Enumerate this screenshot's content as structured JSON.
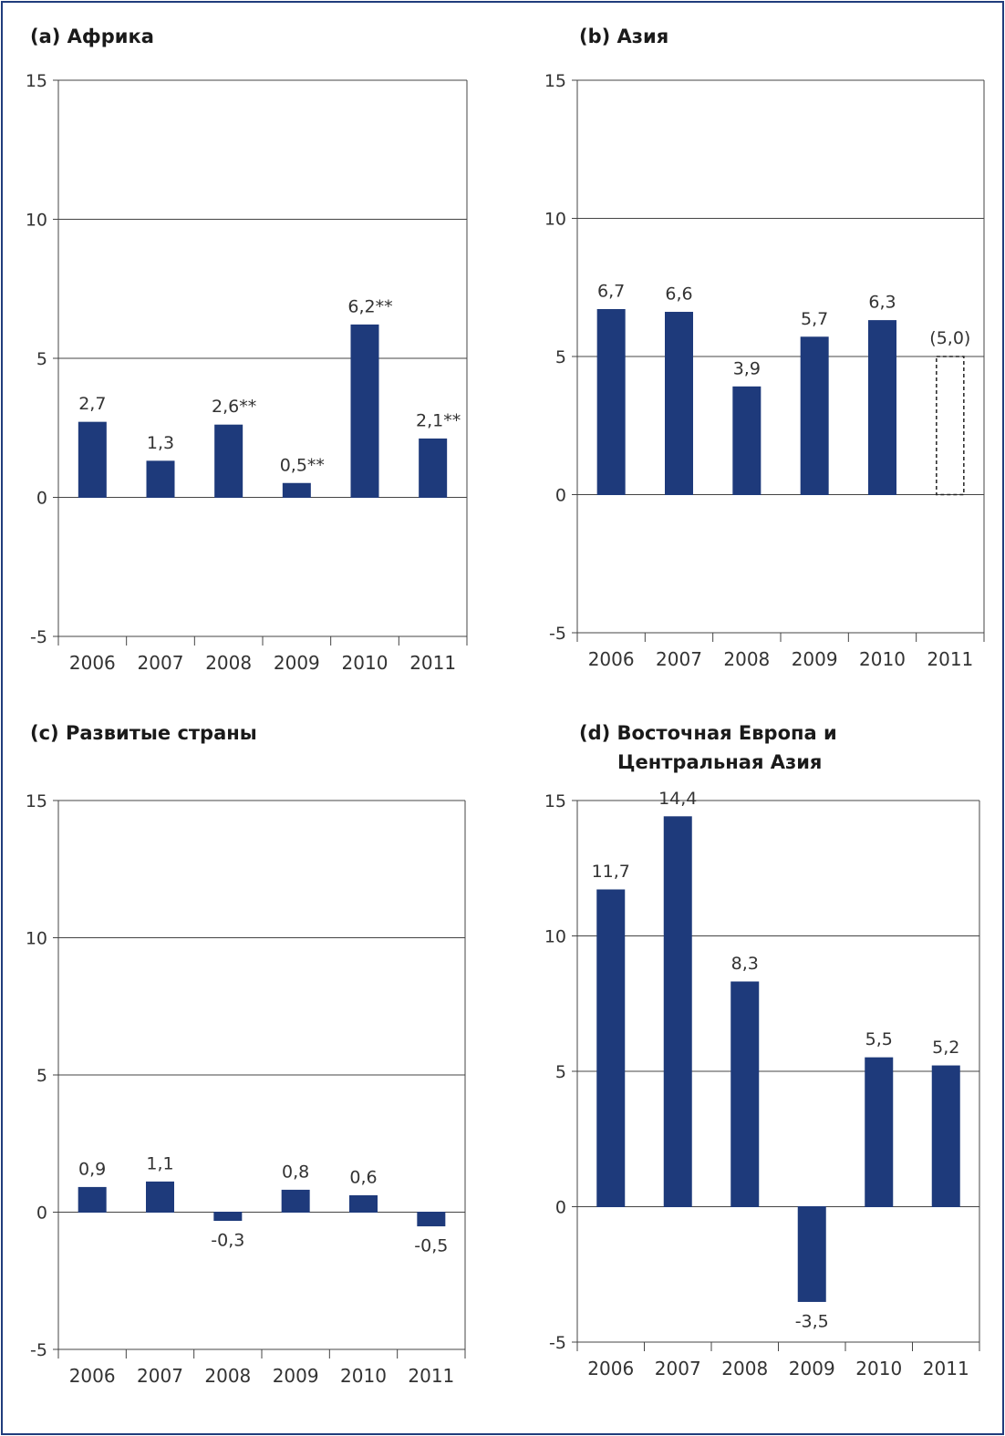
{
  "panels": {
    "a": {
      "title": "(a) Африка"
    },
    "b": {
      "title": "(b) Азия"
    },
    "c": {
      "title": "(c) Развитые страны"
    },
    "d": {
      "title_line1": "(d) Восточная Европа и",
      "title_line2": "Центральная Азия"
    }
  },
  "colors": {
    "bar": "#1e3a7b",
    "frame": "#203c7c",
    "grid": "#444444"
  },
  "chart_data": [
    {
      "id": "a",
      "type": "bar",
      "title": "(a) Африка",
      "categories": [
        "2006",
        "2007",
        "2008",
        "2009",
        "2010",
        "2011"
      ],
      "values": [
        2.7,
        1.3,
        2.6,
        0.5,
        6.2,
        2.1
      ],
      "data_labels": [
        "2,7",
        "1,3",
        "2,6**",
        "0,5**",
        "6,2**",
        "2,1**"
      ],
      "ylim": [
        -5,
        15
      ],
      "yticks": [
        -5,
        0,
        5,
        10,
        15
      ],
      "ytick_labels": [
        "-5",
        "0",
        "5",
        "10",
        "15"
      ],
      "grid": true,
      "projected_last": false
    },
    {
      "id": "b",
      "type": "bar",
      "title": "(b) Азия",
      "categories": [
        "2006",
        "2007",
        "2008",
        "2009",
        "2010",
        "2011"
      ],
      "values": [
        6.7,
        6.6,
        3.9,
        5.7,
        6.3,
        5.0
      ],
      "data_labels": [
        "6,7",
        "6,6",
        "3,9",
        "5,7",
        "6,3",
        "(5,0)"
      ],
      "ylim": [
        -5,
        15
      ],
      "yticks": [
        -5,
        0,
        5,
        10,
        15
      ],
      "ytick_labels": [
        "-5",
        "0",
        "5",
        "10",
        "15"
      ],
      "grid": true,
      "projected_last": true
    },
    {
      "id": "c",
      "type": "bar",
      "title": "(c) Развитые страны",
      "categories": [
        "2006",
        "2007",
        "2008",
        "2009",
        "2010",
        "2011"
      ],
      "values": [
        0.9,
        1.1,
        -0.3,
        0.8,
        0.6,
        -0.5
      ],
      "data_labels": [
        "0,9",
        "1,1",
        "-0,3",
        "0,8",
        "0,6",
        "-0,5"
      ],
      "ylim": [
        -5,
        15
      ],
      "yticks": [
        -5,
        0,
        5,
        10,
        15
      ],
      "ytick_labels": [
        "-5",
        "0",
        "5",
        "10",
        "15"
      ],
      "grid": true,
      "projected_last": false
    },
    {
      "id": "d",
      "type": "bar",
      "title": "(d) Восточная Европа и Центральная Азия",
      "categories": [
        "2006",
        "2007",
        "2008",
        "2009",
        "2010",
        "2011"
      ],
      "values": [
        11.7,
        14.4,
        8.3,
        -3.5,
        5.5,
        5.2
      ],
      "data_labels": [
        "11,7",
        "14,4",
        "8,3",
        "-3,5",
        "5,5",
        "5,2"
      ],
      "ylim": [
        -5,
        15
      ],
      "yticks": [
        -5,
        0,
        5,
        10,
        15
      ],
      "ytick_labels": [
        "-5",
        "0",
        "5",
        "10",
        "15"
      ],
      "grid": true,
      "projected_last": false
    }
  ]
}
